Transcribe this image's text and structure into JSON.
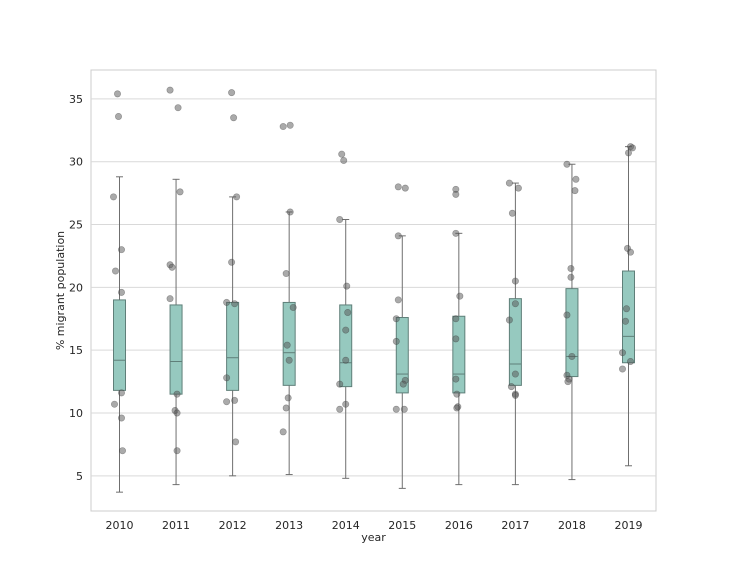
{
  "chart_data": {
    "type": "box",
    "xlabel": "year",
    "ylabel": "% migrant population",
    "categories": [
      "2010",
      "2011",
      "2012",
      "2013",
      "2014",
      "2015",
      "2016",
      "2017",
      "2018",
      "2019"
    ],
    "ylim": [
      2.2,
      37.3
    ],
    "yticks": [
      5,
      10,
      15,
      20,
      25,
      30,
      35
    ],
    "grid": "horizontal",
    "box_color": "#96c9bf",
    "box_edge_color": "#5f7f79",
    "point_color": "#555555",
    "boxes": [
      {
        "whisker_low": 3.7,
        "q1": 11.8,
        "median": 14.2,
        "q3": 19.0,
        "whisker_high": 28.8
      },
      {
        "whisker_low": 4.3,
        "q1": 11.5,
        "median": 14.1,
        "q3": 18.6,
        "whisker_high": 28.6
      },
      {
        "whisker_low": 5.0,
        "q1": 11.8,
        "median": 14.4,
        "q3": 18.8,
        "whisker_high": 27.2
      },
      {
        "whisker_low": 5.1,
        "q1": 12.2,
        "median": 14.8,
        "q3": 18.8,
        "whisker_high": 26.0
      },
      {
        "whisker_low": 4.8,
        "q1": 12.1,
        "median": 14.0,
        "q3": 18.6,
        "whisker_high": 25.4
      },
      {
        "whisker_low": 4.0,
        "q1": 11.6,
        "median": 13.1,
        "q3": 17.6,
        "whisker_high": 24.1
      },
      {
        "whisker_low": 4.3,
        "q1": 11.6,
        "median": 13.1,
        "q3": 17.7,
        "whisker_high": 24.3
      },
      {
        "whisker_low": 4.3,
        "q1": 12.2,
        "median": 13.9,
        "q3": 19.1,
        "whisker_high": 28.3
      },
      {
        "whisker_low": 4.7,
        "q1": 12.9,
        "median": 14.5,
        "q3": 19.9,
        "whisker_high": 29.8
      },
      {
        "whisker_low": 5.8,
        "q1": 14.0,
        "median": 16.1,
        "q3": 21.3,
        "whisker_high": 31.2
      }
    ],
    "points": [
      [
        35.4,
        33.6,
        27.2,
        23.0,
        21.3,
        19.6,
        11.6,
        10.7,
        9.6,
        7.0
      ],
      [
        35.7,
        34.3,
        27.6,
        21.8,
        21.6,
        19.1,
        11.5,
        10.2,
        10.0,
        7.0
      ],
      [
        35.5,
        33.5,
        27.2,
        22.0,
        18.8,
        18.7,
        12.8,
        11.0,
        10.9,
        7.7
      ],
      [
        32.8,
        32.9,
        26.0,
        21.1,
        18.4,
        15.4,
        14.2,
        11.2,
        10.4,
        8.5
      ],
      [
        30.6,
        30.1,
        25.4,
        20.1,
        18.0,
        16.6,
        14.2,
        12.3,
        10.7,
        10.3
      ],
      [
        28.0,
        27.9,
        24.1,
        19.0,
        17.5,
        15.7,
        12.6,
        12.3,
        10.3,
        10.3
      ],
      [
        27.8,
        27.4,
        24.3,
        19.3,
        17.5,
        15.9,
        12.7,
        11.5,
        10.5,
        10.4
      ],
      [
        28.3,
        27.9,
        25.9,
        20.5,
        18.7,
        17.4,
        13.1,
        12.1,
        11.5,
        11.4
      ],
      [
        29.8,
        28.6,
        27.7,
        21.5,
        20.8,
        17.8,
        14.5,
        13.0,
        12.7,
        12.5
      ],
      [
        31.2,
        31.1,
        30.7,
        23.1,
        22.8,
        18.3,
        17.3,
        14.8,
        14.1,
        13.5
      ]
    ],
    "jitter": [
      [
        -2,
        -1,
        -6,
        2,
        -4,
        2,
        2,
        -5,
        2,
        3
      ],
      [
        -6,
        2,
        4,
        -6,
        -4,
        -6,
        1,
        -1,
        1,
        1
      ],
      [
        -1,
        1,
        4,
        -1,
        -6,
        2,
        -6,
        2,
        -6,
        3
      ],
      [
        -6,
        1,
        1,
        -3,
        4,
        -2,
        0,
        -1,
        -3,
        -6
      ],
      [
        -4,
        -2,
        -6,
        1,
        2,
        0,
        0,
        -6,
        0,
        -6
      ],
      [
        -4,
        3,
        -4,
        -4,
        -6,
        -6,
        3,
        1,
        -6,
        2
      ],
      [
        -3,
        -3,
        -3,
        1,
        -3,
        -3,
        -3,
        -2,
        -1,
        -2
      ],
      [
        -6,
        3,
        -3,
        0,
        0,
        -6,
        0,
        -4,
        0,
        0
      ],
      [
        -5,
        4,
        3,
        -1,
        -1,
        -5,
        0,
        -5,
        -3,
        -4
      ],
      [
        2,
        4,
        0,
        -1,
        2,
        -2,
        -3,
        -6,
        2,
        -6
      ]
    ]
  }
}
